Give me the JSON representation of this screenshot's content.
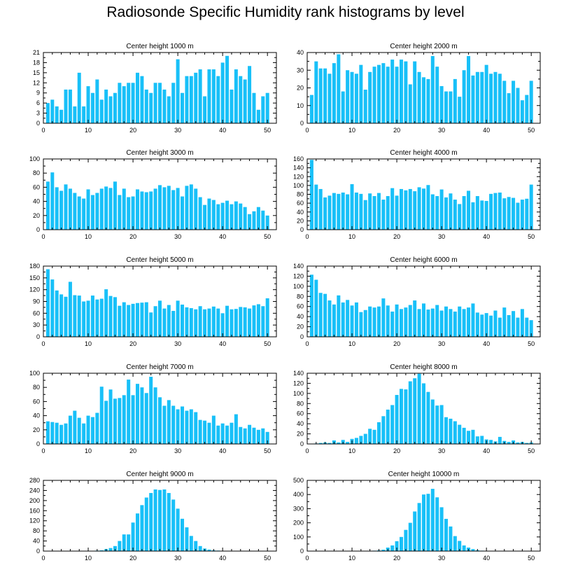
{
  "title": "Radiosonde Specific Humidity rank histograms by level",
  "bar_color": "#18C0F8",
  "chart_data": [
    {
      "type": "bar",
      "title": "Center height 1000 m",
      "xlabel": "",
      "ylabel": "",
      "xlim": [
        0,
        52
      ],
      "ylim": [
        0,
        21
      ],
      "xticks": [
        0,
        10,
        20,
        30,
        40,
        50
      ],
      "yticks": [
        0,
        3,
        6,
        9,
        12,
        15,
        18,
        21
      ],
      "values": [
        6,
        7,
        5,
        4,
        10,
        10,
        5,
        15,
        5,
        11,
        9,
        13,
        7,
        10,
        8,
        9,
        12,
        11,
        12,
        12,
        15,
        14,
        10,
        9,
        12,
        12,
        10,
        8,
        12,
        19,
        9,
        14,
        14,
        15,
        16,
        8,
        16,
        16,
        14,
        18,
        20,
        10,
        16,
        14,
        13,
        17,
        9,
        4,
        8,
        9
      ]
    },
    {
      "type": "bar",
      "title": "Center height 2000 m",
      "xlabel": "",
      "ylabel": "",
      "xlim": [
        0,
        52
      ],
      "ylim": [
        0,
        40
      ],
      "xticks": [
        0,
        10,
        20,
        30,
        40,
        50
      ],
      "yticks": [
        0,
        10,
        20,
        30,
        40
      ],
      "values": [
        16,
        35,
        31,
        31,
        28,
        34,
        39,
        18,
        30,
        29,
        28,
        33,
        19,
        29,
        32,
        33,
        34,
        32,
        36,
        32,
        36,
        35,
        22,
        35,
        29,
        26,
        25,
        38,
        32,
        21,
        18,
        18,
        25,
        15,
        30,
        38,
        27,
        29,
        29,
        33,
        28,
        29,
        28,
        24,
        17,
        24,
        20,
        13,
        16,
        24
      ]
    },
    {
      "type": "bar",
      "title": "Center height 3000 m",
      "xlabel": "",
      "ylabel": "",
      "xlim": [
        0,
        52
      ],
      "ylim": [
        0,
        100
      ],
      "xticks": [
        0,
        10,
        20,
        30,
        40,
        50
      ],
      "yticks": [
        0,
        20,
        40,
        60,
        80,
        100
      ],
      "values": [
        68,
        81,
        60,
        55,
        64,
        58,
        52,
        47,
        44,
        57,
        49,
        52,
        58,
        61,
        59,
        68,
        49,
        58,
        46,
        47,
        57,
        54,
        53,
        54,
        58,
        63,
        60,
        62,
        56,
        59,
        47,
        62,
        64,
        58,
        46,
        35,
        44,
        42,
        36,
        38,
        41,
        36,
        40,
        37,
        32,
        22,
        26,
        32,
        27,
        20
      ]
    },
    {
      "type": "bar",
      "title": "Center height 4000 m",
      "xlabel": "",
      "ylabel": "",
      "xlim": [
        0,
        52
      ],
      "ylim": [
        0,
        160
      ],
      "xticks": [
        0,
        10,
        20,
        30,
        40,
        50
      ],
      "yticks": [
        0,
        20,
        40,
        60,
        80,
        100,
        120,
        140,
        160
      ],
      "values": [
        158,
        102,
        92,
        73,
        77,
        83,
        81,
        84,
        80,
        103,
        84,
        81,
        67,
        82,
        76,
        83,
        68,
        76,
        94,
        77,
        92,
        89,
        92,
        87,
        96,
        93,
        101,
        80,
        76,
        91,
        73,
        82,
        68,
        58,
        76,
        88,
        62,
        76,
        66,
        65,
        81,
        83,
        84,
        71,
        74,
        72,
        61,
        68,
        70,
        102
      ]
    },
    {
      "type": "bar",
      "title": "Center height 5000 m",
      "xlabel": "",
      "ylabel": "",
      "xlim": [
        0,
        52
      ],
      "ylim": [
        0,
        180
      ],
      "xticks": [
        0,
        10,
        20,
        30,
        40,
        50
      ],
      "yticks": [
        0,
        30,
        60,
        90,
        120,
        150,
        180
      ],
      "values": [
        172,
        146,
        118,
        108,
        102,
        140,
        106,
        105,
        90,
        92,
        105,
        95,
        97,
        121,
        104,
        101,
        79,
        88,
        81,
        84,
        86,
        87,
        88,
        62,
        78,
        92,
        72,
        81,
        66,
        92,
        82,
        75,
        73,
        70,
        78,
        70,
        72,
        77,
        72,
        60,
        79,
        70,
        71,
        76,
        75,
        72,
        80,
        83,
        78,
        98
      ]
    },
    {
      "type": "bar",
      "title": "Center height 6000 m",
      "xlabel": "",
      "ylabel": "",
      "xlim": [
        0,
        52
      ],
      "ylim": [
        0,
        140
      ],
      "xticks": [
        0,
        10,
        20,
        30,
        40,
        50
      ],
      "yticks": [
        0,
        20,
        40,
        60,
        80,
        100,
        120,
        140
      ],
      "values": [
        123,
        113,
        87,
        85,
        72,
        64,
        82,
        68,
        73,
        62,
        68,
        49,
        53,
        60,
        58,
        60,
        76,
        62,
        50,
        64,
        55,
        58,
        63,
        72,
        55,
        66,
        54,
        56,
        63,
        52,
        60,
        55,
        50,
        60,
        55,
        58,
        66,
        48,
        44,
        47,
        42,
        52,
        38,
        58,
        43,
        51,
        38,
        55,
        38,
        33
      ]
    },
    {
      "type": "bar",
      "title": "Center height 7000 m",
      "xlabel": "",
      "ylabel": "",
      "xlim": [
        0,
        52
      ],
      "ylim": [
        0,
        100
      ],
      "xticks": [
        0,
        10,
        20,
        30,
        40,
        50
      ],
      "yticks": [
        0,
        20,
        40,
        60,
        80,
        100
      ],
      "values": [
        32,
        31,
        30,
        27,
        29,
        40,
        47,
        37,
        29,
        40,
        38,
        44,
        81,
        61,
        77,
        64,
        65,
        69,
        91,
        69,
        85,
        80,
        72,
        95,
        80,
        66,
        54,
        62,
        54,
        49,
        53,
        47,
        49,
        45,
        34,
        33,
        30,
        40,
        26,
        29,
        26,
        30,
        42,
        24,
        22,
        27,
        23,
        20,
        22,
        17
      ]
    },
    {
      "type": "bar",
      "title": "Center height 8000 m",
      "xlabel": "",
      "ylabel": "",
      "xlim": [
        0,
        52
      ],
      "ylim": [
        0,
        140
      ],
      "xticks": [
        0,
        10,
        20,
        30,
        40,
        50
      ],
      "yticks": [
        0,
        20,
        40,
        60,
        80,
        100,
        120,
        140
      ],
      "values": [
        0,
        1,
        2,
        3,
        2,
        7,
        3,
        8,
        4,
        10,
        12,
        16,
        20,
        30,
        28,
        43,
        55,
        68,
        77,
        97,
        109,
        108,
        124,
        130,
        139,
        120,
        103,
        88,
        76,
        77,
        53,
        50,
        45,
        38,
        32,
        26,
        28,
        15,
        16,
        9,
        8,
        5,
        14,
        6,
        4,
        7,
        3,
        4,
        2,
        3
      ]
    },
    {
      "type": "bar",
      "title": "Center height 9000 m",
      "xlabel": "",
      "ylabel": "",
      "xlim": [
        0,
        52
      ],
      "ylim": [
        0,
        280
      ],
      "xticks": [
        0,
        10,
        20,
        30,
        40,
        50
      ],
      "yticks": [
        0,
        40,
        80,
        120,
        160,
        200,
        240,
        280
      ],
      "values": [
        0,
        0,
        0,
        0,
        0,
        0,
        0,
        0,
        0,
        1,
        1,
        2,
        3,
        8,
        12,
        20,
        40,
        66,
        66,
        113,
        149,
        182,
        212,
        230,
        244,
        242,
        244,
        230,
        204,
        168,
        128,
        94,
        60,
        40,
        20,
        10,
        6,
        3,
        2,
        1,
        1,
        0,
        0,
        0,
        0,
        0,
        0,
        0,
        0,
        0
      ]
    },
    {
      "type": "bar",
      "title": "Center height 10000 m",
      "xlabel": "",
      "ylabel": "",
      "xlim": [
        0,
        52
      ],
      "ylim": [
        0,
        500
      ],
      "xticks": [
        0,
        10,
        20,
        30,
        40,
        50
      ],
      "yticks": [
        0,
        100,
        200,
        300,
        400,
        500
      ],
      "values": [
        0,
        0,
        0,
        0,
        0,
        0,
        0,
        0,
        0,
        0,
        0,
        0,
        1,
        2,
        3,
        5,
        10,
        25,
        40,
        70,
        100,
        150,
        200,
        280,
        340,
        400,
        405,
        440,
        380,
        310,
        228,
        174,
        106,
        72,
        40,
        25,
        14,
        6,
        3,
        1,
        1,
        0,
        0,
        0,
        0,
        0,
        0,
        0,
        0,
        0
      ]
    }
  ]
}
